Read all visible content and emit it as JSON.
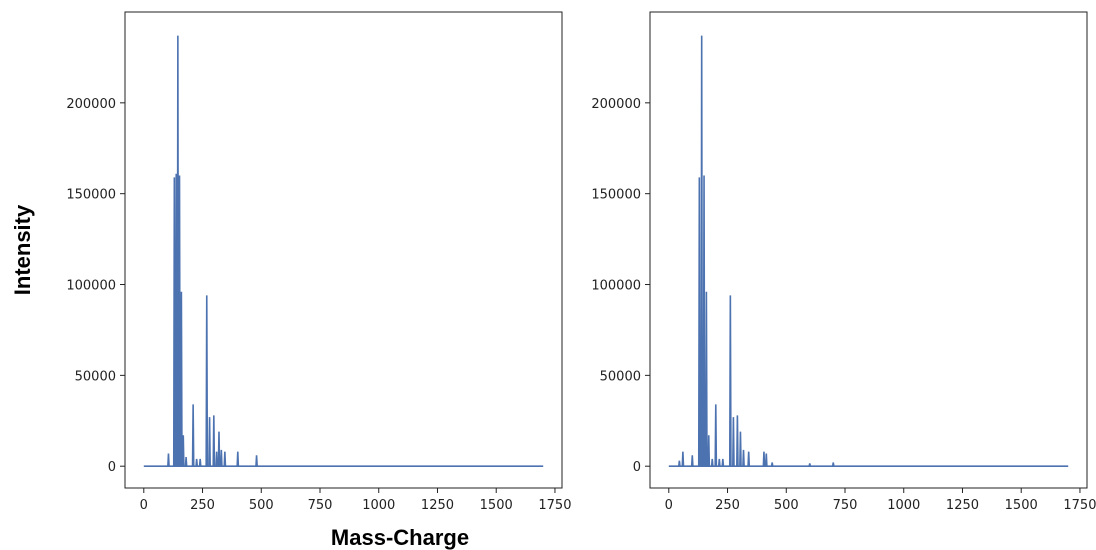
{
  "figure": {
    "ylabel": "Intensity",
    "xlabel": "Mass-Charge"
  },
  "chart_data": [
    {
      "type": "line",
      "title": "",
      "xlabel": "",
      "ylabel": "",
      "xlim": [
        -80,
        1780
      ],
      "ylim": [
        -12000,
        250000
      ],
      "xticks": [
        0,
        250,
        500,
        750,
        1000,
        1250,
        1500,
        1750
      ],
      "yticks": [
        0,
        50000,
        100000,
        150000,
        200000
      ],
      "grid": false,
      "color": "#4c72b0",
      "peaks": [
        {
          "mz": 105,
          "intensity": 7000
        },
        {
          "mz": 130,
          "intensity": 159000
        },
        {
          "mz": 138,
          "intensity": 161000
        },
        {
          "mz": 145,
          "intensity": 237000
        },
        {
          "mz": 152,
          "intensity": 160000
        },
        {
          "mz": 160,
          "intensity": 96000
        },
        {
          "mz": 168,
          "intensity": 17000
        },
        {
          "mz": 180,
          "intensity": 5000
        },
        {
          "mz": 210,
          "intensity": 34000
        },
        {
          "mz": 225,
          "intensity": 4000
        },
        {
          "mz": 240,
          "intensity": 4000
        },
        {
          "mz": 268,
          "intensity": 94000
        },
        {
          "mz": 280,
          "intensity": 27000
        },
        {
          "mz": 298,
          "intensity": 28000
        },
        {
          "mz": 310,
          "intensity": 8000
        },
        {
          "mz": 320,
          "intensity": 19000
        },
        {
          "mz": 330,
          "intensity": 9000
        },
        {
          "mz": 345,
          "intensity": 8000
        },
        {
          "mz": 400,
          "intensity": 8000
        },
        {
          "mz": 480,
          "intensity": 6000
        }
      ]
    },
    {
      "type": "line",
      "title": "",
      "xlabel": "",
      "ylabel": "",
      "xlim": [
        -80,
        1780
      ],
      "ylim": [
        -12000,
        250000
      ],
      "xticks": [
        0,
        250,
        500,
        750,
        1000,
        1250,
        1500,
        1750
      ],
      "yticks": [
        0,
        50000,
        100000,
        150000,
        200000
      ],
      "grid": false,
      "color": "#4c72b0",
      "peaks": [
        {
          "mz": 45,
          "intensity": 3000
        },
        {
          "mz": 60,
          "intensity": 8000
        },
        {
          "mz": 100,
          "intensity": 6000
        },
        {
          "mz": 130,
          "intensity": 159000
        },
        {
          "mz": 140,
          "intensity": 237000
        },
        {
          "mz": 150,
          "intensity": 160000
        },
        {
          "mz": 160,
          "intensity": 96000
        },
        {
          "mz": 170,
          "intensity": 17000
        },
        {
          "mz": 185,
          "intensity": 4000
        },
        {
          "mz": 200,
          "intensity": 34000
        },
        {
          "mz": 215,
          "intensity": 4000
        },
        {
          "mz": 230,
          "intensity": 4000
        },
        {
          "mz": 262,
          "intensity": 94000
        },
        {
          "mz": 275,
          "intensity": 27000
        },
        {
          "mz": 292,
          "intensity": 28000
        },
        {
          "mz": 305,
          "intensity": 19000
        },
        {
          "mz": 318,
          "intensity": 9000
        },
        {
          "mz": 340,
          "intensity": 8000
        },
        {
          "mz": 405,
          "intensity": 8000
        },
        {
          "mz": 415,
          "intensity": 7000
        },
        {
          "mz": 440,
          "intensity": 2000
        },
        {
          "mz": 600,
          "intensity": 1500
        },
        {
          "mz": 700,
          "intensity": 2000
        }
      ]
    }
  ]
}
